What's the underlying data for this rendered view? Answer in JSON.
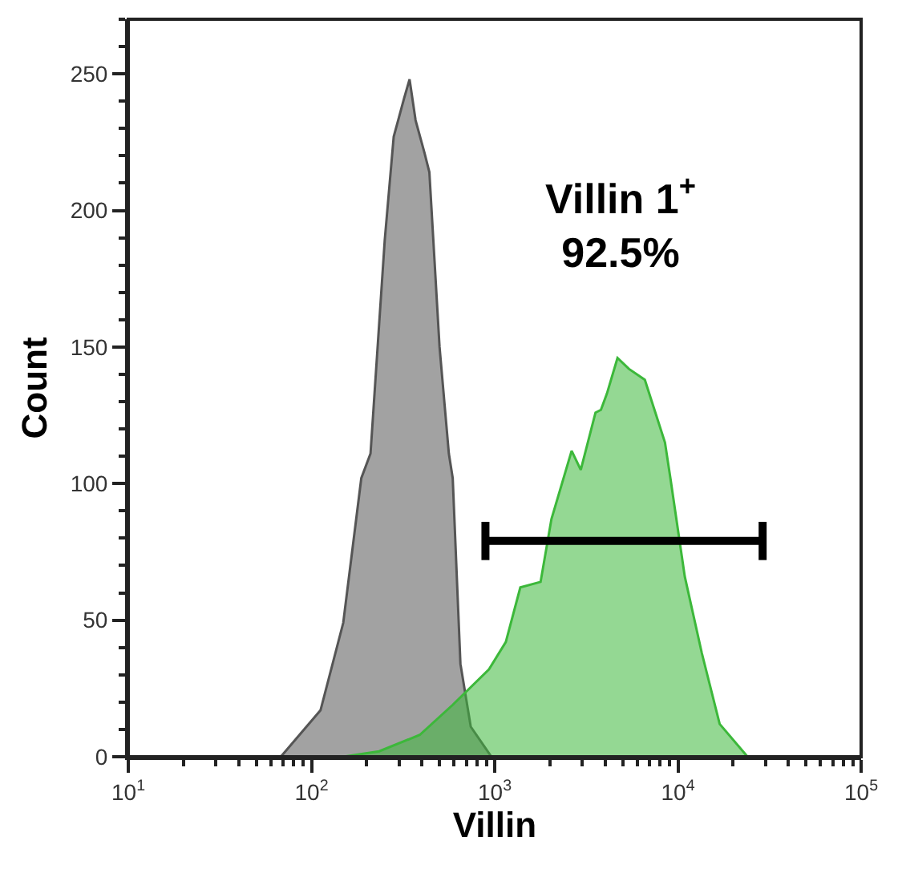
{
  "chart_data": {
    "type": "area",
    "xlabel": "Villin",
    "ylabel": "Count",
    "log": "x",
    "legend": false,
    "xlim": [
      10,
      100000
    ],
    "xticks": [
      {
        "value": 10,
        "label": "10$^{1}$"
      },
      {
        "value": 100,
        "label": "10$^{2}$"
      },
      {
        "value": 1000,
        "label": "10$^{3}$"
      },
      {
        "value": 10000,
        "label": "10$^{4}$"
      },
      {
        "value": 100000,
        "label": "10$^{5}$"
      }
    ],
    "ylim": [
      0,
      270
    ],
    "yticks": [
      0,
      50,
      100,
      150,
      200,
      250
    ],
    "series": [
      {
        "color": "#555555",
        "x": [
          68,
          112,
          149,
          187,
          210,
          251,
          281,
          300,
          320,
          343,
          370,
          414,
          440,
          500,
          562,
          590,
          650,
          740,
          960
        ],
        "values": [
          0,
          17,
          49,
          102,
          111,
          189,
          227,
          234,
          241,
          248,
          233,
          221,
          214,
          150,
          111,
          102,
          34,
          11,
          0
        ]
      },
      {
        "color": "#3cb83a",
        "x": [
          149,
          234,
          390,
          590,
          930,
          1150,
          1380,
          1780,
          2040,
          2630,
          2950,
          3550,
          3800,
          4100,
          4680,
          5400,
          6600,
          8500,
          9100,
          10900,
          13500,
          16900,
          24000
        ],
        "values": [
          0,
          2,
          8,
          19,
          32,
          42,
          62,
          64,
          87,
          112,
          105,
          126,
          127,
          133,
          146,
          142,
          138,
          115,
          102,
          66,
          38,
          12,
          0
        ]
      },
      {
        "type": "line",
        "color": "#000000",
        "x": [
          890,
          29000
        ],
        "values": [
          79,
          79
        ],
        "errors": [
          7,
          7
        ]
      }
    ],
    "annotations": [
      "Villin 1$^{+}$\n92.5%"
    ]
  }
}
